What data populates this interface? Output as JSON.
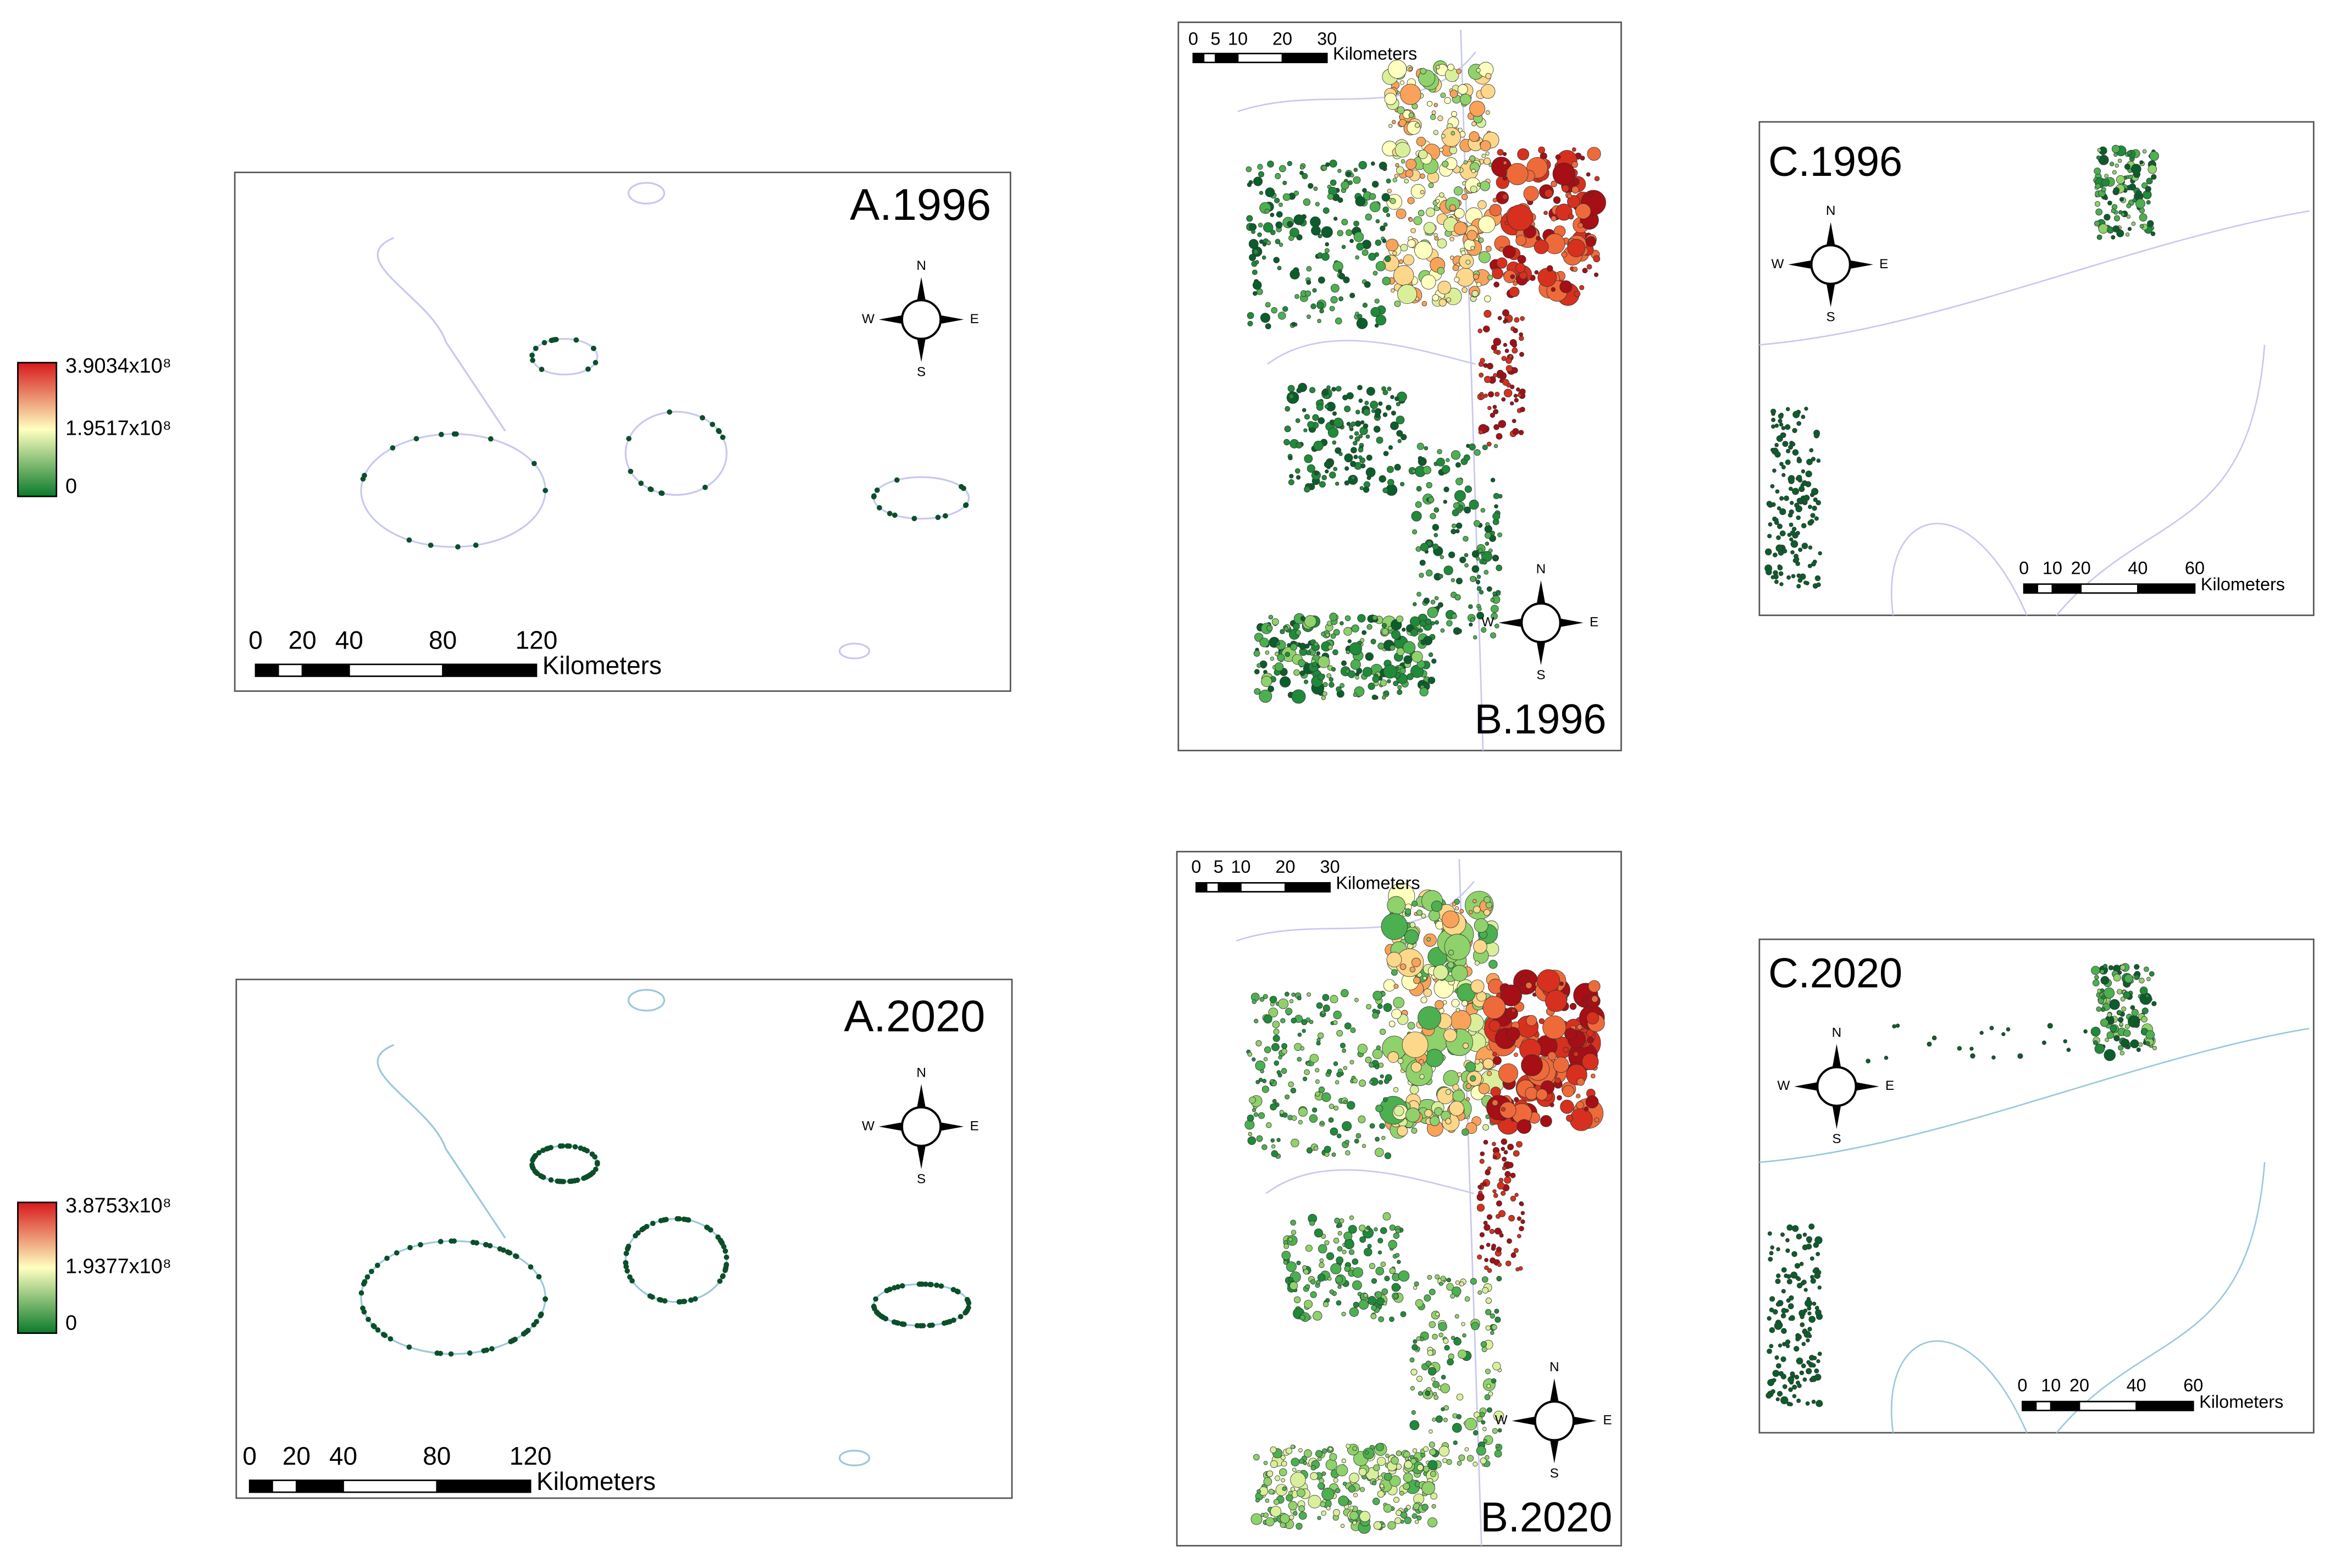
{
  "legends": [
    {
      "max": "3.9034x10⁸",
      "mid": "1.9517x10⁸",
      "min": "0"
    },
    {
      "max": "3.8753x10⁸",
      "mid": "1.9377x10⁸",
      "min": "0"
    }
  ],
  "panels": [
    {
      "label": "A.1996",
      "scale_ticks": [
        0,
        20,
        40,
        80,
        120
      ],
      "scale_unit": "Kilometers",
      "compass": {
        "n": "N",
        "e": "E",
        "s": "S",
        "w": "W"
      }
    },
    {
      "label": "B.1996",
      "scale_ticks": [
        0,
        5,
        10,
        20,
        30
      ],
      "scale_unit": "Kilometers",
      "compass": {
        "n": "N",
        "e": "E",
        "s": "S",
        "w": "W"
      }
    },
    {
      "label": "C.1996",
      "scale_ticks": [
        0,
        10,
        20,
        40,
        60
      ],
      "scale_unit": "Kilometers",
      "compass": {
        "n": "N",
        "e": "E",
        "s": "S",
        "w": "W"
      }
    },
    {
      "label": "A.2020",
      "scale_ticks": [
        0,
        20,
        40,
        80,
        120
      ],
      "scale_unit": "Kilometers",
      "compass": {
        "n": "N",
        "e": "E",
        "s": "S",
        "w": "W"
      }
    },
    {
      "label": "B.2020",
      "scale_ticks": [
        0,
        5,
        10,
        20,
        30
      ],
      "scale_unit": "Kilometers",
      "compass": {
        "n": "N",
        "e": "E",
        "s": "S",
        "w": "W"
      }
    },
    {
      "label": "C.2020",
      "scale_ticks": [
        0,
        10,
        20,
        40,
        60
      ],
      "scale_unit": "Kilometers",
      "compass": {
        "n": "N",
        "e": "E",
        "s": "S",
        "w": "W"
      }
    }
  ]
}
